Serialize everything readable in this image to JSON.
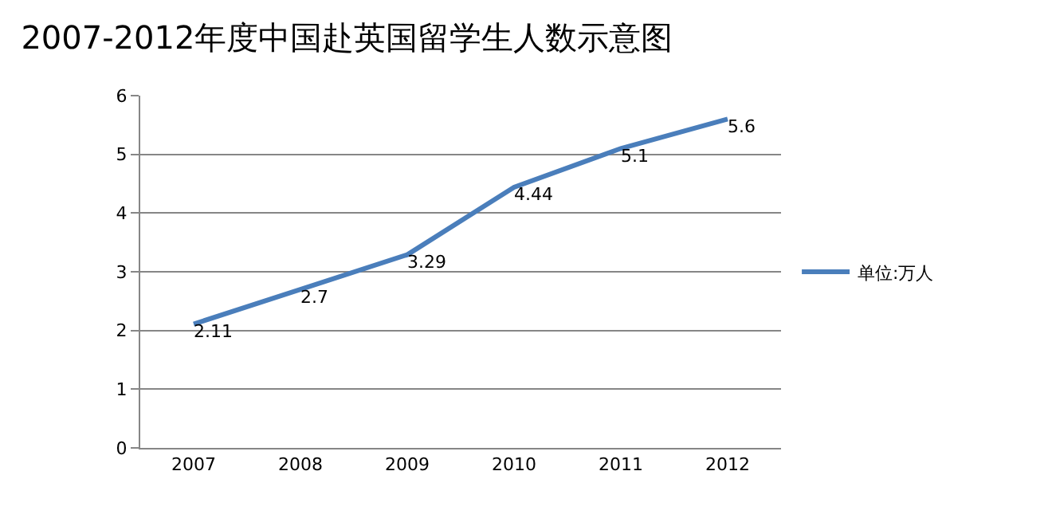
{
  "chart_data": {
    "type": "line",
    "title": "2007-2012年度中国赴英国留学生人数示意图",
    "categories": [
      "2007",
      "2008",
      "2009",
      "2010",
      "2011",
      "2012"
    ],
    "series": [
      {
        "name": "单位:万人",
        "color": "#4a7ebb",
        "values": [
          2.11,
          2.7,
          3.29,
          4.44,
          5.1,
          5.6
        ]
      }
    ],
    "ylim": [
      0,
      6
    ],
    "yticks": [
      0,
      1,
      2,
      3,
      4,
      5,
      6
    ],
    "grid": "y",
    "legend": "right",
    "marker": "none",
    "line_style": "solid",
    "data_labels": true
  }
}
